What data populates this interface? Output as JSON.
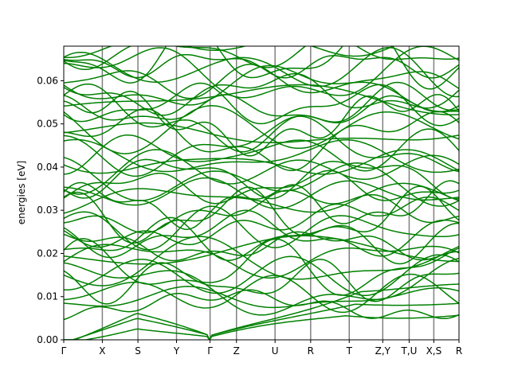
{
  "chart_data": {
    "type": "line",
    "title": "",
    "xlabel": "",
    "ylabel": "energies [eV]",
    "ylim": [
      0,
      0.068
    ],
    "yticks": [
      0.0,
      0.01,
      0.02,
      0.03,
      0.04,
      0.05,
      0.06
    ],
    "ytick_labels": [
      "0.00",
      "0.01",
      "0.02",
      "0.03",
      "0.04",
      "0.05",
      "0.06"
    ],
    "path_labels": [
      "Γ",
      "X",
      "S",
      "Y",
      "Γ",
      "Z",
      "U",
      "R",
      "T",
      "Z,Y",
      "T,U",
      "X,S",
      "R"
    ],
    "path_positions": [
      0,
      0.0976,
      0.1877,
      0.2853,
      0.3702,
      0.437,
      0.5346,
      0.6247,
      0.7223,
      0.8071,
      0.8739,
      0.9363,
      1.0
    ],
    "line_color": "#008000",
    "vline_color": "#808080",
    "zero_line": true,
    "grid": false,
    "legend": "none",
    "band_count_approx": 48,
    "band_energy_range": [
      0.0,
      0.068
    ]
  }
}
